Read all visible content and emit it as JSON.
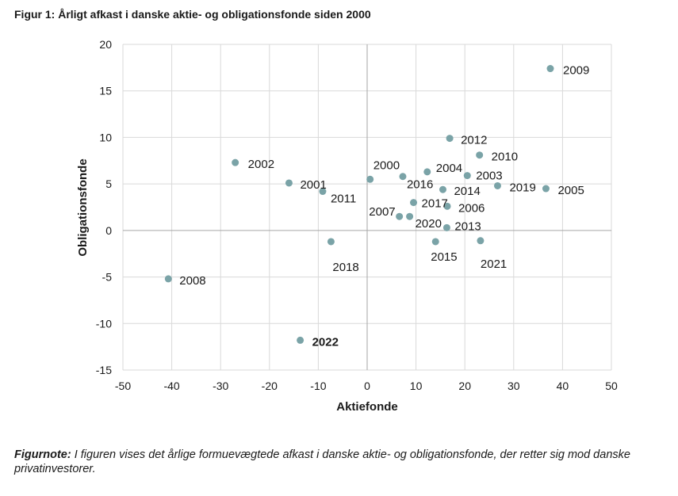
{
  "figure": {
    "title": "Figur 1: Årligt afkast i danske aktie- og obligationsfonde siden 2000",
    "note_label": "Figurnote:",
    "note_text": " I figuren vises det årlige formuevægtede afkast i danske aktie- og obligationsfonde, der retter sig mod danske privatinvestorer."
  },
  "colors": {
    "point": "#7aa3a7",
    "grid": "#d9d9d9",
    "axis": "#a6a6a6",
    "text": "#1a1a1a"
  },
  "chart_data": {
    "type": "scatter",
    "title": "Figur 1: Årligt afkast i danske aktie- og obligationsfonde siden 2000",
    "xlabel": "Aktiefonde",
    "ylabel": "Obligationsfonde",
    "xlim": [
      -50,
      50
    ],
    "ylim": [
      -15,
      20
    ],
    "xticks": [
      -50,
      -40,
      -30,
      -20,
      -10,
      0,
      10,
      20,
      30,
      40,
      50
    ],
    "yticks": [
      -15,
      -10,
      -5,
      0,
      5,
      10,
      15,
      20
    ],
    "grid": true,
    "legend": "none",
    "points": [
      {
        "label": "2000",
        "x": 0.6,
        "y": 5.5,
        "bold": false
      },
      {
        "label": "2001",
        "x": -16.0,
        "y": 5.1,
        "bold": false
      },
      {
        "label": "2002",
        "x": -27.0,
        "y": 7.3,
        "bold": false
      },
      {
        "label": "2003",
        "x": 20.5,
        "y": 5.9,
        "bold": false
      },
      {
        "label": "2004",
        "x": 12.3,
        "y": 6.3,
        "bold": false
      },
      {
        "label": "2005",
        "x": 36.6,
        "y": 4.5,
        "bold": false
      },
      {
        "label": "2006",
        "x": 16.4,
        "y": 2.6,
        "bold": false
      },
      {
        "label": "2007",
        "x": 6.6,
        "y": 1.5,
        "bold": false
      },
      {
        "label": "2008",
        "x": -40.7,
        "y": -5.2,
        "bold": false
      },
      {
        "label": "2009",
        "x": 37.5,
        "y": 17.4,
        "bold": false
      },
      {
        "label": "2010",
        "x": 23.0,
        "y": 8.1,
        "bold": false
      },
      {
        "label": "2011",
        "x": -9.1,
        "y": 4.2,
        "bold": false
      },
      {
        "label": "2012",
        "x": 16.9,
        "y": 9.9,
        "bold": false
      },
      {
        "label": "2013",
        "x": 16.3,
        "y": 0.3,
        "bold": false
      },
      {
        "label": "2014",
        "x": 15.5,
        "y": 4.4,
        "bold": false
      },
      {
        "label": "2015",
        "x": 14.0,
        "y": -1.2,
        "bold": false
      },
      {
        "label": "2016",
        "x": 7.3,
        "y": 5.8,
        "bold": false
      },
      {
        "label": "2017",
        "x": 9.5,
        "y": 3.0,
        "bold": false
      },
      {
        "label": "2018",
        "x": -7.4,
        "y": -1.2,
        "bold": false
      },
      {
        "label": "2019",
        "x": 26.7,
        "y": 4.8,
        "bold": false
      },
      {
        "label": "2020",
        "x": 8.7,
        "y": 1.5,
        "bold": false
      },
      {
        "label": "2021",
        "x": 23.2,
        "y": -1.1,
        "bold": false
      },
      {
        "label": "2022",
        "x": -13.7,
        "y": -11.8,
        "bold": true
      }
    ]
  }
}
